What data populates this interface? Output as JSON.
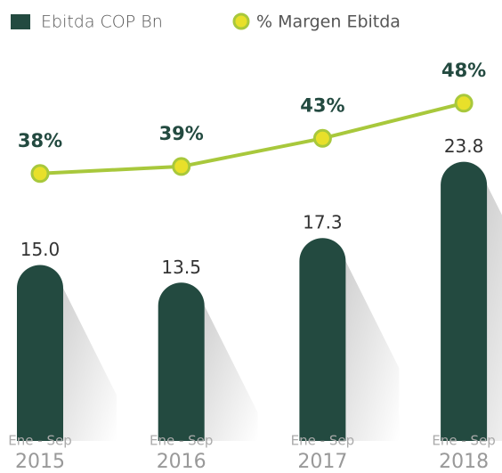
{
  "chart_data": {
    "type": "bar",
    "categories": [
      [
        "Ene - Sep",
        "2015"
      ],
      [
        "Ene - Sep",
        "2016"
      ],
      [
        "Ene - Sep",
        "2017"
      ],
      [
        "Ene - Sep",
        "2018"
      ]
    ],
    "series": [
      {
        "name": "Ebitda COP Bn",
        "color": "#234a40",
        "type": "bar",
        "values": [
          15.0,
          13.5,
          17.3,
          23.8
        ],
        "value_labels": [
          "15.0",
          "13.5",
          "17.3",
          "23.8"
        ]
      },
      {
        "name": "% Margen Ebitda",
        "color": "#a8c83c",
        "type": "line",
        "axis": "y2",
        "values": [
          38,
          39,
          43,
          48
        ],
        "value_labels": [
          "38%",
          "39%",
          "43%",
          "48%"
        ]
      }
    ],
    "ylim": [
      0,
      30
    ],
    "y2lim": [
      0,
      50
    ],
    "legend": "top-left",
    "grid": false
  }
}
